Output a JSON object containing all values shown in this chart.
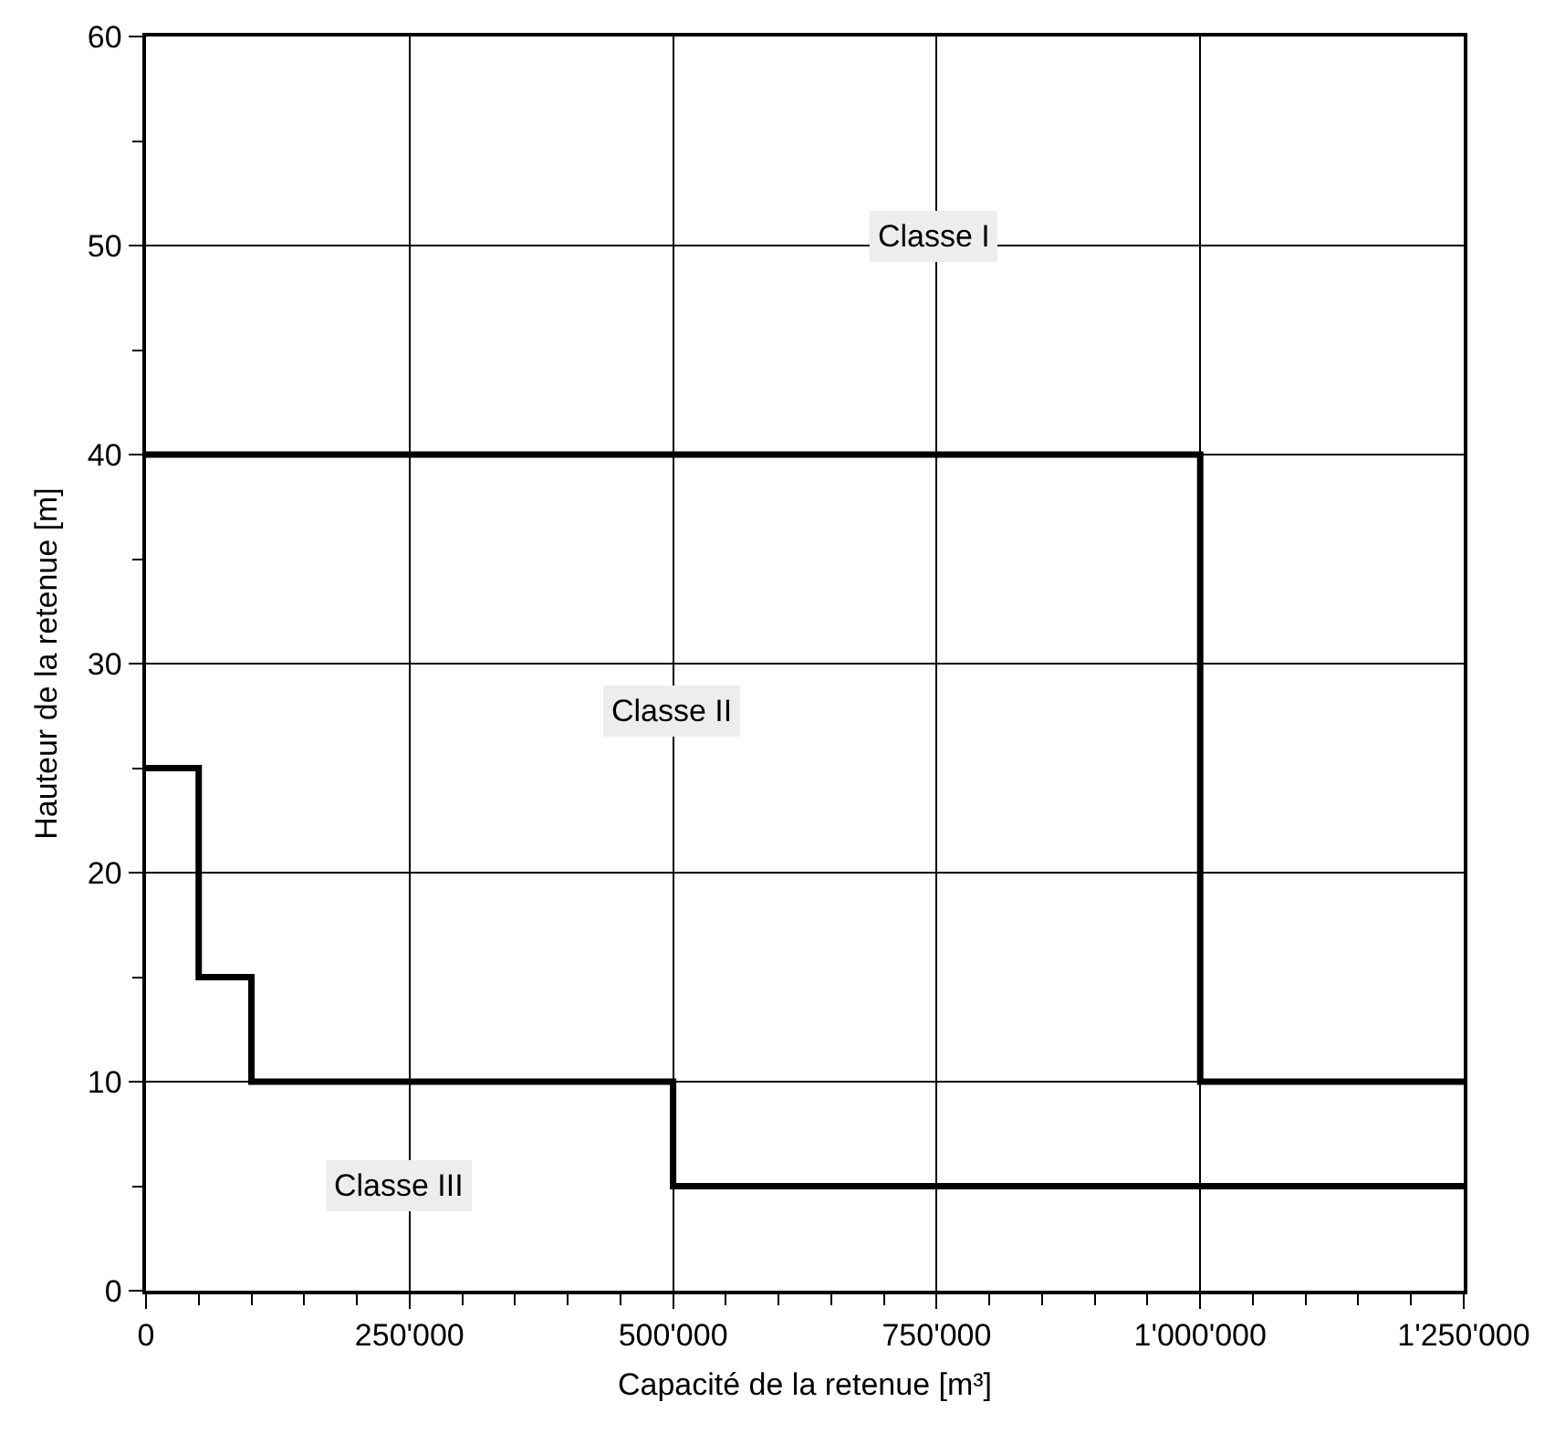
{
  "chart_data": {
    "type": "step",
    "xlabel": "Capacité de la retenue [m³]",
    "ylabel": "Hauteur de la retenue [m]",
    "series": [
      {
        "color": "#000000",
        "x": [
          0,
          1000000,
          1250000
        ],
        "values": [
          40,
          10,
          10
        ]
      },
      {
        "color": "#000000",
        "x": [
          0,
          50000,
          100000,
          500000,
          1250000
        ],
        "values": [
          25,
          15,
          10,
          5,
          5
        ]
      }
    ],
    "xlim": [
      0,
      1250000
    ],
    "xticks": [
      0,
      {
        "value": 50000,
        "label": null
      },
      {
        "value": 100000,
        "label": null
      },
      {
        "value": 150000,
        "label": null
      },
      {
        "value": 200000,
        "label": null
      },
      {
        "value": 250000,
        "label": "250'000"
      },
      {
        "value": 300000,
        "label": null
      },
      {
        "value": 350000,
        "label": null
      },
      {
        "value": 400000,
        "label": null
      },
      {
        "value": 450000,
        "label": null
      },
      {
        "value": 500000,
        "label": "500'000"
      },
      {
        "value": 550000,
        "label": null
      },
      {
        "value": 600000,
        "label": null
      },
      {
        "value": 650000,
        "label": null
      },
      {
        "value": 700000,
        "label": null
      },
      {
        "value": 750000,
        "label": "750'000"
      },
      {
        "value": 800000,
        "label": null
      },
      {
        "value": 850000,
        "label": null
      },
      {
        "value": 900000,
        "label": null
      },
      {
        "value": 950000,
        "label": null
      },
      {
        "value": 1000000,
        "label": "1'000'000"
      },
      {
        "value": 1050000,
        "label": null
      },
      {
        "value": 1100000,
        "label": null
      },
      {
        "value": 1150000,
        "label": null
      },
      {
        "value": 1200000,
        "label": null
      },
      {
        "value": 1250000,
        "label": "1'250'000"
      }
    ],
    "ylim": [
      0,
      60
    ],
    "yticks": [
      0,
      {
        "value": 5,
        "label": null
      },
      10,
      {
        "value": 15,
        "label": null
      },
      20,
      {
        "value": 25,
        "label": null
      },
      30,
      {
        "value": 35,
        "label": null
      },
      40,
      {
        "value": 45,
        "label": null
      },
      50,
      {
        "value": 55,
        "label": null
      },
      60
    ],
    "annotations": [
      "Classe I",
      "Classe II",
      "Classe III"
    ],
    "grid": true,
    "marker": "none",
    "line_style": "solid"
  }
}
